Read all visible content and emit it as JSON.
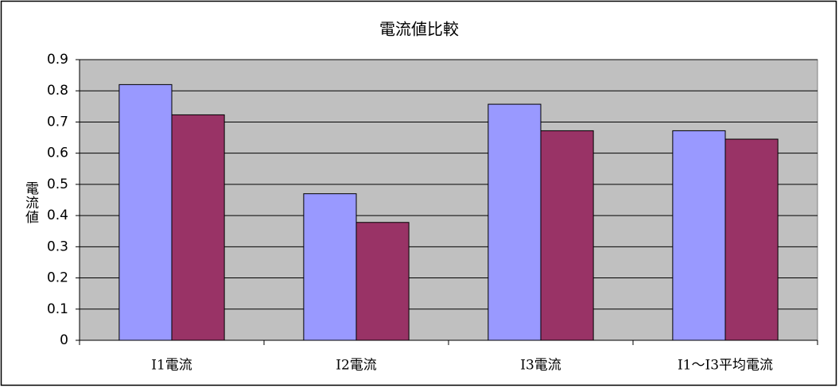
{
  "chart_data": {
    "type": "bar",
    "title": "電流値比較",
    "y_label": "電流値",
    "categories": [
      "I1電流",
      "I2電流",
      "I3電流",
      "I1～I3平均電流"
    ],
    "series": [
      {
        "color": "#9999ff",
        "values": [
          0.82,
          0.47,
          0.757,
          0.672
        ]
      },
      {
        "color": "#993366",
        "values": [
          0.723,
          0.378,
          0.672,
          0.645
        ]
      }
    ],
    "ylim": [
      0,
      0.9
    ],
    "yticks": [
      0,
      0.1,
      0.2,
      0.3,
      0.4,
      0.5,
      0.6,
      0.7,
      0.8,
      0.9
    ],
    "grid": true,
    "plot_background": "#c0c0c0"
  }
}
